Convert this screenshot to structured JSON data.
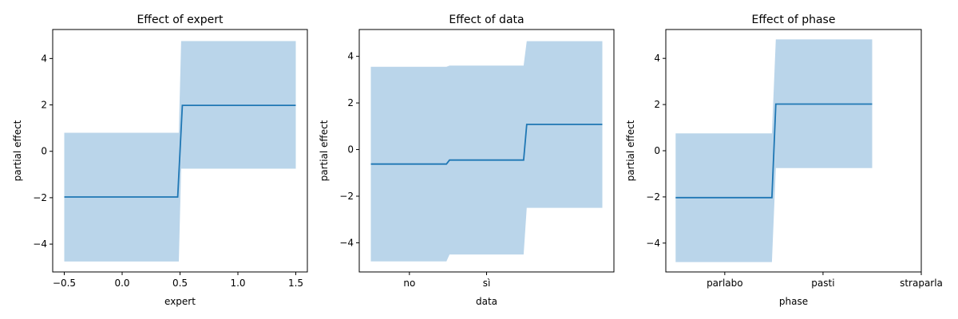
{
  "figure": {
    "background": "#ffffff",
    "line_color": "#1f77b4",
    "band_color": "#bad5ea"
  },
  "chart_data": [
    {
      "type": "line",
      "title": "Effect of expert",
      "xlabel": "expert",
      "ylabel": "partial effect",
      "x_ticks": [
        -0.5,
        0.0,
        0.5,
        1.0,
        1.5
      ],
      "x_tick_labels": [
        "−0.5",
        "0.0",
        "0.5",
        "1.0",
        "1.5"
      ],
      "y_ticks": [
        -4,
        -2,
        0,
        2,
        4
      ],
      "y_tick_labels": [
        "−4",
        "−2",
        "0",
        "2",
        "4"
      ],
      "xlim": [
        -0.6,
        1.6
      ],
      "ylim": [
        -5.2,
        5.25
      ],
      "line": {
        "x": [
          -0.5,
          0.48,
          0.5,
          0.52,
          1.5
        ],
        "y": [
          -1.97,
          -1.97,
          0.0,
          1.98,
          1.98
        ]
      },
      "band": {
        "x": [
          -0.5,
          0.49,
          0.51,
          1.5
        ],
        "lower": [
          -4.75,
          -4.75,
          -0.75,
          -0.75
        ],
        "upper": [
          0.8,
          0.8,
          4.75,
          4.75
        ]
      }
    },
    {
      "type": "line",
      "title": "Effect of data",
      "xlabel": "data",
      "ylabel": "partial effect",
      "x_ticks": [
        0.5,
        1.5
      ],
      "x_tick_labels": [
        "no",
        "sì"
      ],
      "y_ticks": [
        -4,
        -2,
        0,
        2,
        4
      ],
      "y_tick_labels": [
        "−4",
        "−2",
        "0",
        "2",
        "4"
      ],
      "xlim": [
        -0.15,
        3.15
      ],
      "ylim": [
        -5.25,
        5.15
      ],
      "line": {
        "x": [
          0.0,
          0.98,
          1.02,
          1.98,
          2.02,
          3.0
        ],
        "y": [
          -0.62,
          -0.62,
          -0.45,
          -0.45,
          1.08,
          1.08
        ]
      },
      "band": {
        "x": [
          0.0,
          0.98,
          1.02,
          1.98,
          2.02,
          3.0
        ],
        "lower": [
          -4.8,
          -4.8,
          -4.5,
          -4.5,
          -2.5,
          -2.5
        ],
        "upper": [
          3.55,
          3.55,
          3.6,
          3.6,
          4.65,
          4.65
        ]
      }
    },
    {
      "type": "line",
      "title": "Effect of phase",
      "xlabel": "phase",
      "ylabel": "partial effect",
      "x_ticks": [
        0.5,
        1.5,
        2.5
      ],
      "x_tick_labels": [
        "parlabo",
        "pasti",
        "straparla"
      ],
      "y_ticks": [
        -4,
        -2,
        0,
        2,
        4
      ],
      "y_tick_labels": [
        "−4",
        "−2",
        "0",
        "2",
        "4"
      ],
      "xlim": [
        -0.1,
        2.5
      ],
      "ylim": [
        -5.25,
        5.25
      ],
      "line": {
        "x": [
          0.0,
          0.98,
          1.02,
          2.0
        ],
        "y": [
          -2.03,
          -2.03,
          2.02,
          2.02
        ]
      },
      "band": {
        "x": [
          0.0,
          0.98,
          1.02,
          2.0
        ],
        "lower": [
          -4.82,
          -4.82,
          -0.75,
          -0.75
        ],
        "upper": [
          0.75,
          0.75,
          4.82,
          4.82
        ]
      }
    }
  ]
}
